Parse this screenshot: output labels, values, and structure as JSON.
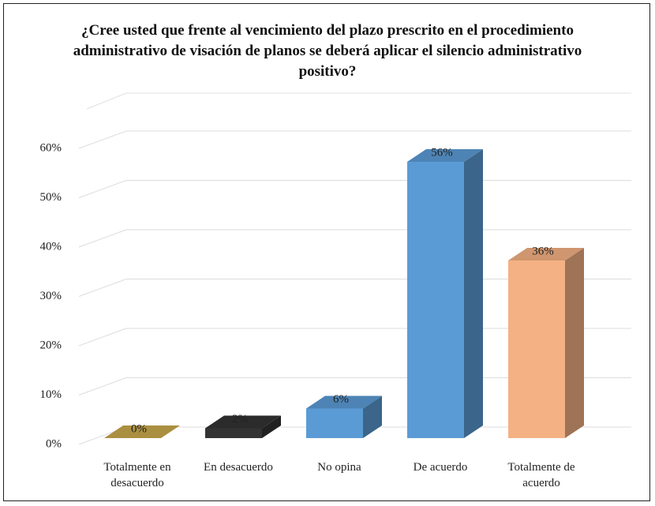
{
  "chart_data": {
    "type": "bar3d",
    "title": "¿Cree usted que frente al vencimiento del plazo prescrito en el procedimiento administrativo de visación de planos se deberá aplicar el silencio administrativo positivo?",
    "categories": [
      "Totalmente en desacuerdo",
      "En desacuerdo",
      "No opina",
      "De acuerdo",
      "Totalmente de acuerdo"
    ],
    "values": [
      0,
      2,
      6,
      56,
      36
    ],
    "value_labels": [
      "0%",
      "2%",
      "6%",
      "56%",
      "36%"
    ],
    "colors": [
      "#c9a84c",
      "#333333",
      "#5b9bd5",
      "#5b9bd5",
      "#f4b183"
    ],
    "ylim": [
      0,
      60
    ],
    "yticks": [
      {
        "value": 0,
        "label": "0%"
      },
      {
        "value": 10,
        "label": "10%"
      },
      {
        "value": 20,
        "label": "20%"
      },
      {
        "value": 30,
        "label": "30%"
      },
      {
        "value": 40,
        "label": "40%"
      },
      {
        "value": 50,
        "label": "50%"
      },
      {
        "value": 60,
        "label": "60%"
      }
    ],
    "grid": true
  }
}
